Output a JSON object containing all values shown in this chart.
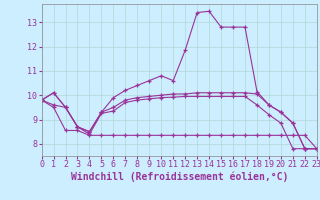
{
  "xlabel": "Windchill (Refroidissement éolien,°C)",
  "bg_color": "#cceeff",
  "line_color": "#993399",
  "marker": "+",
  "x_values": [
    0,
    1,
    2,
    3,
    4,
    5,
    6,
    7,
    8,
    9,
    10,
    11,
    12,
    13,
    14,
    15,
    16,
    17,
    18,
    19,
    20,
    21,
    22,
    23
  ],
  "series": [
    [
      9.8,
      10.1,
      9.5,
      8.7,
      8.5,
      9.3,
      9.9,
      10.2,
      10.4,
      10.6,
      10.8,
      10.6,
      11.85,
      13.4,
      13.45,
      12.8,
      12.8,
      12.8,
      10.15,
      9.6,
      9.3,
      8.85,
      7.8,
      7.8
    ],
    [
      9.8,
      10.1,
      9.5,
      8.7,
      8.5,
      9.3,
      9.5,
      9.8,
      9.9,
      9.95,
      10.0,
      10.05,
      10.05,
      10.1,
      10.1,
      10.1,
      10.1,
      10.1,
      10.05,
      9.6,
      9.3,
      8.85,
      7.8,
      7.8
    ],
    [
      9.8,
      9.6,
      9.5,
      8.7,
      8.4,
      9.25,
      9.35,
      9.7,
      9.8,
      9.85,
      9.9,
      9.92,
      9.95,
      9.95,
      9.95,
      9.95,
      9.95,
      9.95,
      9.6,
      9.2,
      8.85,
      7.8,
      7.8,
      7.8
    ],
    [
      9.8,
      9.5,
      8.55,
      8.55,
      8.35,
      8.35,
      8.35,
      8.35,
      8.35,
      8.35,
      8.35,
      8.35,
      8.35,
      8.35,
      8.35,
      8.35,
      8.35,
      8.35,
      8.35,
      8.35,
      8.35,
      8.35,
      8.35,
      7.8
    ]
  ],
  "xlim": [
    0,
    23
  ],
  "ylim": [
    7.5,
    13.75
  ],
  "yticks": [
    8,
    9,
    10,
    11,
    12,
    13
  ],
  "xticks": [
    0,
    1,
    2,
    3,
    4,
    5,
    6,
    7,
    8,
    9,
    10,
    11,
    12,
    13,
    14,
    15,
    16,
    17,
    18,
    19,
    20,
    21,
    22,
    23
  ],
  "grid_color": "#b0d8d8",
  "tick_fontsize": 6,
  "xlabel_fontsize": 7
}
